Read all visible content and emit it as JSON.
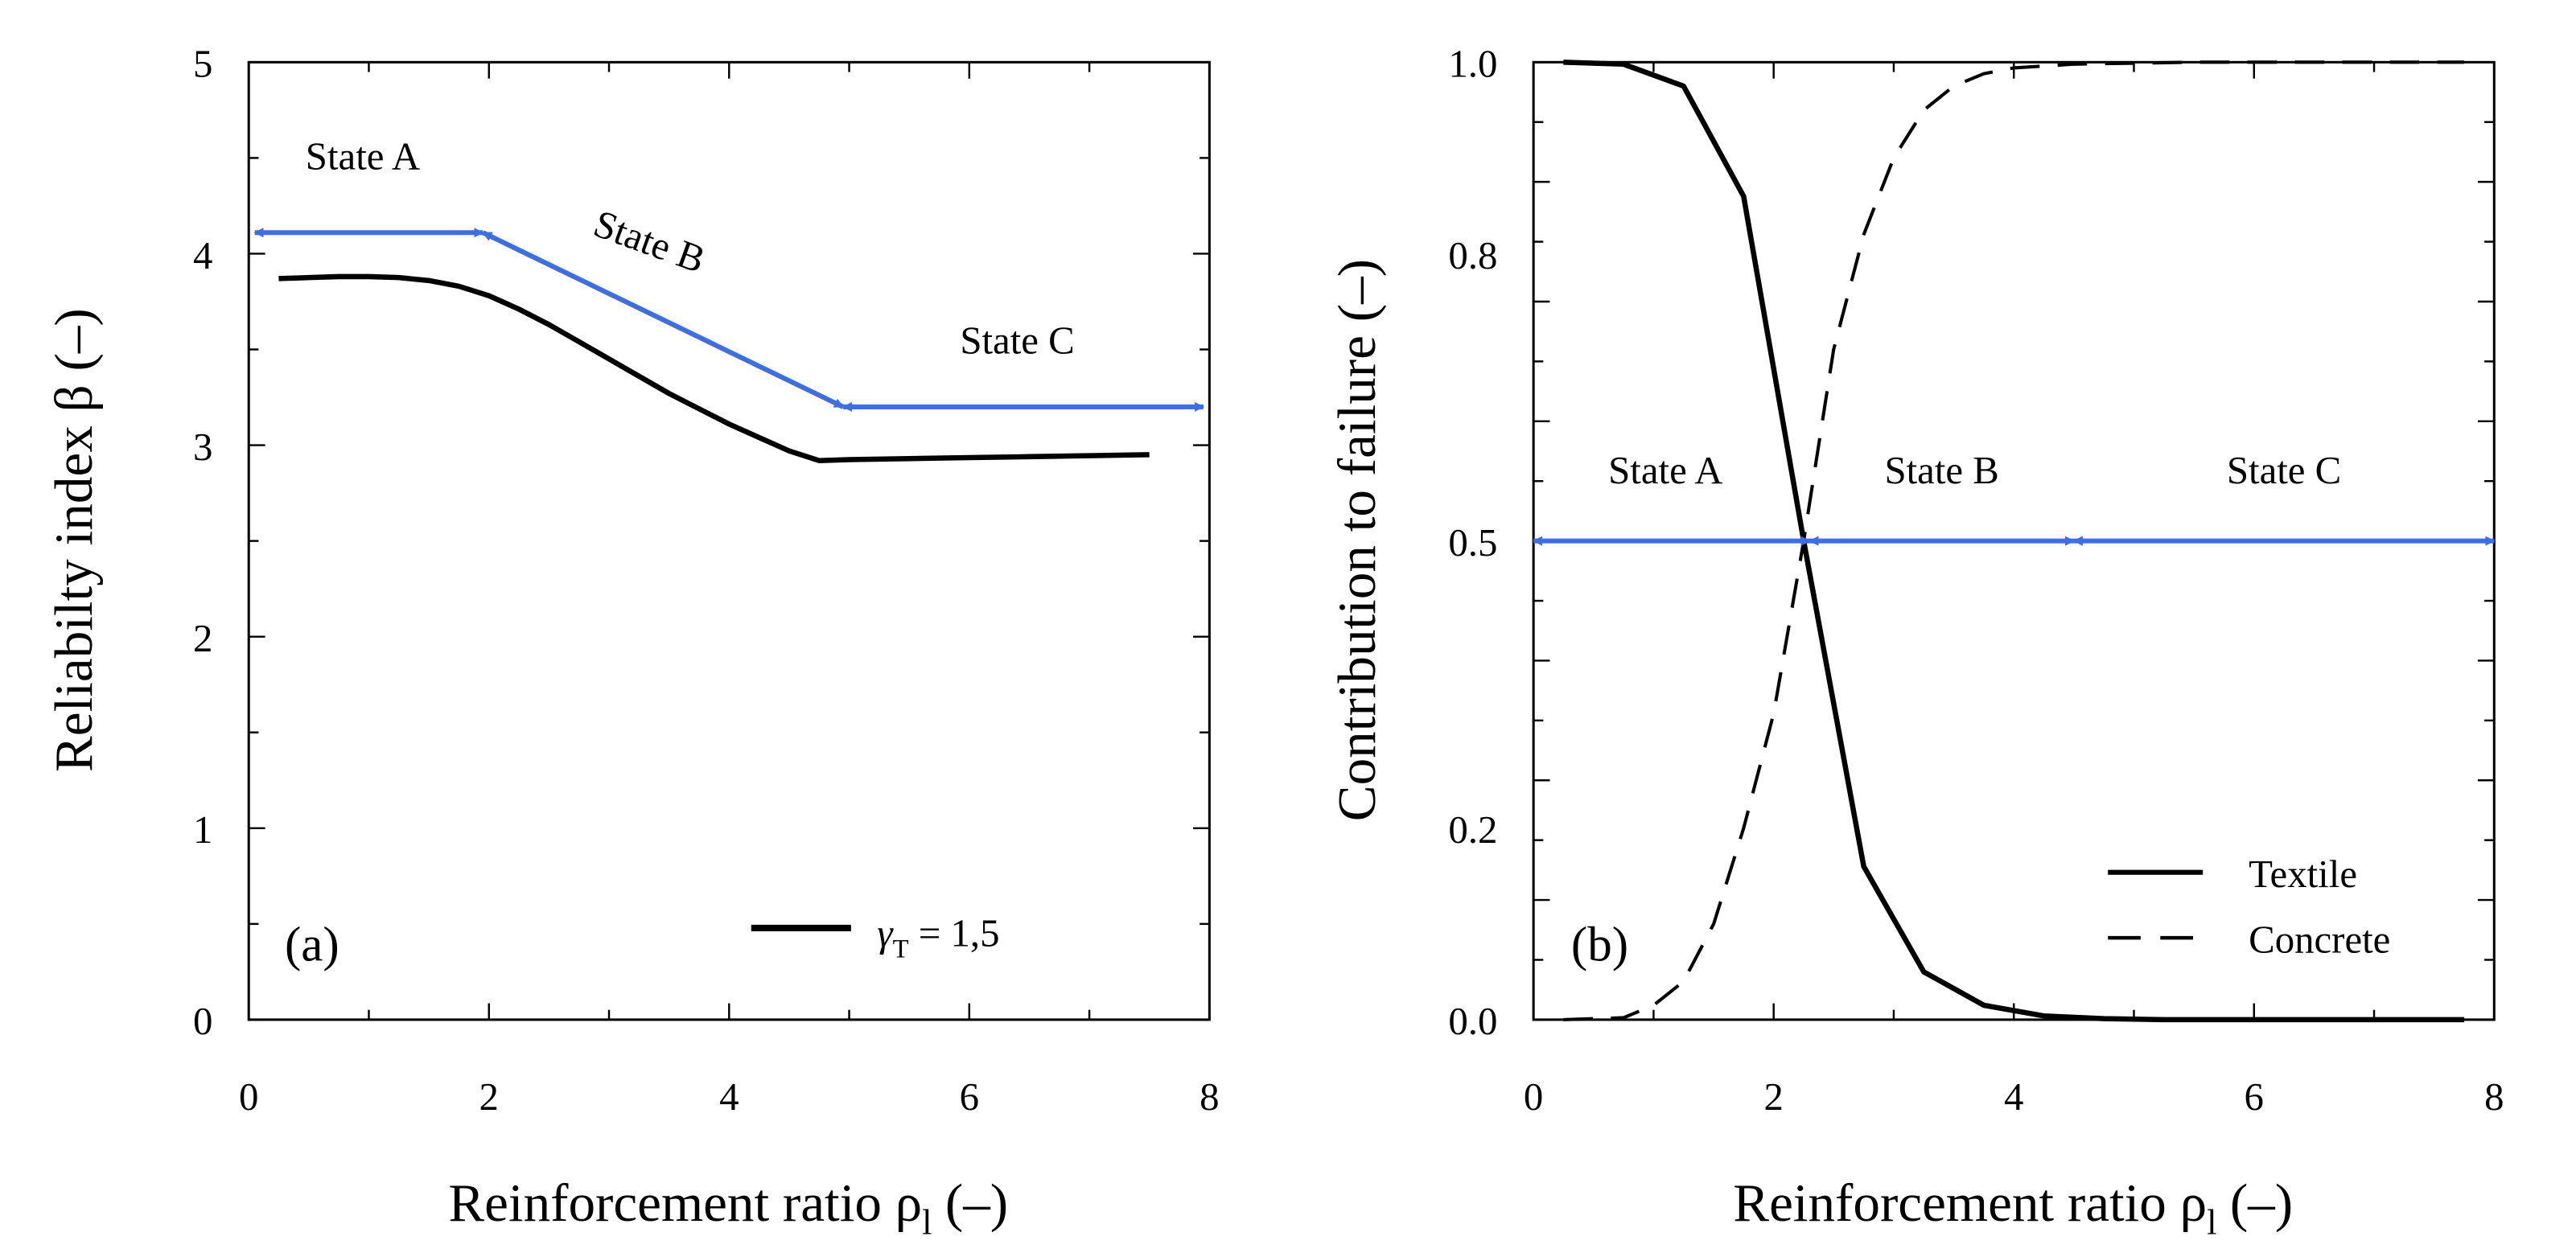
{
  "colors": {
    "series": "#000000",
    "arrow": "#3e6ee0"
  },
  "chart_data": [
    {
      "type": "line",
      "panel_label": "(a)",
      "title": "",
      "xlabel": "Reinforcement ratio ρ",
      "xlabel_sub": "l",
      "xlabel_suffix": "(–)",
      "ylabel": "Reliabilty index β (–)",
      "xlim": [
        0,
        8
      ],
      "ylim": [
        0,
        5
      ],
      "xticks": [
        "0",
        "2",
        "4",
        "6",
        "8"
      ],
      "yticks": [
        "0",
        "1",
        "2",
        "3",
        "4",
        "5"
      ],
      "legend_position": "bottom-right",
      "series": [
        {
          "name": "γ",
          "name_sub": "T",
          "name_suffix": "= 1,5",
          "style": "solid",
          "x": [
            0.25,
            0.5,
            0.75,
            1.0,
            1.25,
            1.5,
            1.75,
            2.0,
            2.25,
            2.5,
            2.75,
            3.0,
            3.25,
            3.5,
            3.75,
            4.0,
            4.25,
            4.5,
            4.75,
            5.0,
            5.5,
            6.0,
            6.5,
            7.0,
            7.5
          ],
          "y": [
            3.87,
            3.875,
            3.88,
            3.88,
            3.875,
            3.86,
            3.83,
            3.78,
            3.71,
            3.63,
            3.54,
            3.45,
            3.36,
            3.27,
            3.19,
            3.11,
            3.04,
            2.97,
            2.92,
            2.925,
            2.93,
            2.935,
            2.94,
            2.945,
            2.95
          ]
        }
      ],
      "annotations": [
        {
          "label": "State A",
          "x_from": 0.05,
          "x_to": 1.95,
          "y_from": 4.11,
          "y_to": 4.11,
          "text_x": 0.95,
          "text_y": 4.44,
          "rotation": 0
        },
        {
          "label": "State B",
          "x_from": 1.95,
          "x_to": 4.95,
          "y_from": 4.11,
          "y_to": 3.2,
          "text_x": 3.3,
          "text_y": 4.0,
          "rotation": 20
        },
        {
          "label": "State C",
          "x_from": 4.95,
          "x_to": 7.95,
          "y_from": 3.2,
          "y_to": 3.2,
          "text_x": 6.4,
          "text_y": 3.48,
          "rotation": 0
        }
      ]
    },
    {
      "type": "line",
      "panel_label": "(b)",
      "title": "",
      "xlabel": "Reinforcement ratio ρ",
      "xlabel_sub": "l",
      "xlabel_suffix": "(–)",
      "ylabel": "Contribution to failure (–)",
      "xlim": [
        0,
        8
      ],
      "ylim": [
        0,
        1
      ],
      "xticks": [
        "0",
        "2",
        "4",
        "6",
        "8"
      ],
      "ytick_values": [
        0,
        0.2,
        0.5,
        0.8,
        1.0
      ],
      "yticks": [
        "0.0",
        "0.2",
        "0.5",
        "0.8",
        "1.0"
      ],
      "legend_position": "bottom-right",
      "series": [
        {
          "name": "Textile",
          "style": "solid",
          "x": [
            0.25,
            0.75,
            1.25,
            1.75,
            2.25,
            2.75,
            3.25,
            3.75,
            4.25,
            4.75,
            5.25,
            5.75,
            6.25,
            6.75,
            7.25,
            7.75
          ],
          "y": [
            1.0,
            0.998,
            0.975,
            0.86,
            0.5,
            0.16,
            0.05,
            0.015,
            0.004,
            0.001,
            0.0,
            0.0,
            0.0,
            0.0,
            0.0,
            0.0
          ]
        },
        {
          "name": "Concrete",
          "style": "dashed",
          "x": [
            0.25,
            0.75,
            1.0,
            1.25,
            1.5,
            1.75,
            2.0,
            2.25,
            2.5,
            2.75,
            3.0,
            3.25,
            3.5,
            3.75,
            4.0,
            4.5,
            5.0,
            5.5,
            6.0,
            6.5,
            7.0,
            7.5,
            7.75
          ],
          "y": [
            0.0,
            0.002,
            0.015,
            0.04,
            0.1,
            0.2,
            0.32,
            0.5,
            0.7,
            0.82,
            0.9,
            0.95,
            0.975,
            0.988,
            0.994,
            0.998,
            0.999,
            1.0,
            1.0,
            1.0,
            1.0,
            1.0,
            1.0
          ]
        }
      ],
      "annotations": [
        {
          "label": "State A",
          "x_from": 0.0,
          "x_to": 2.3,
          "y_from": 0.5,
          "y_to": 0.5,
          "text_x": 1.1,
          "text_y": 0.56,
          "rotation": 0
        },
        {
          "label": "State B",
          "x_from": 2.3,
          "x_to": 4.5,
          "y_from": 0.5,
          "y_to": 0.5,
          "text_x": 3.4,
          "text_y": 0.56,
          "rotation": 0
        },
        {
          "label": "State C",
          "x_from": 4.5,
          "x_to": 8.0,
          "y_from": 0.5,
          "y_to": 0.5,
          "text_x": 6.25,
          "text_y": 0.56,
          "rotation": 0
        }
      ]
    }
  ]
}
